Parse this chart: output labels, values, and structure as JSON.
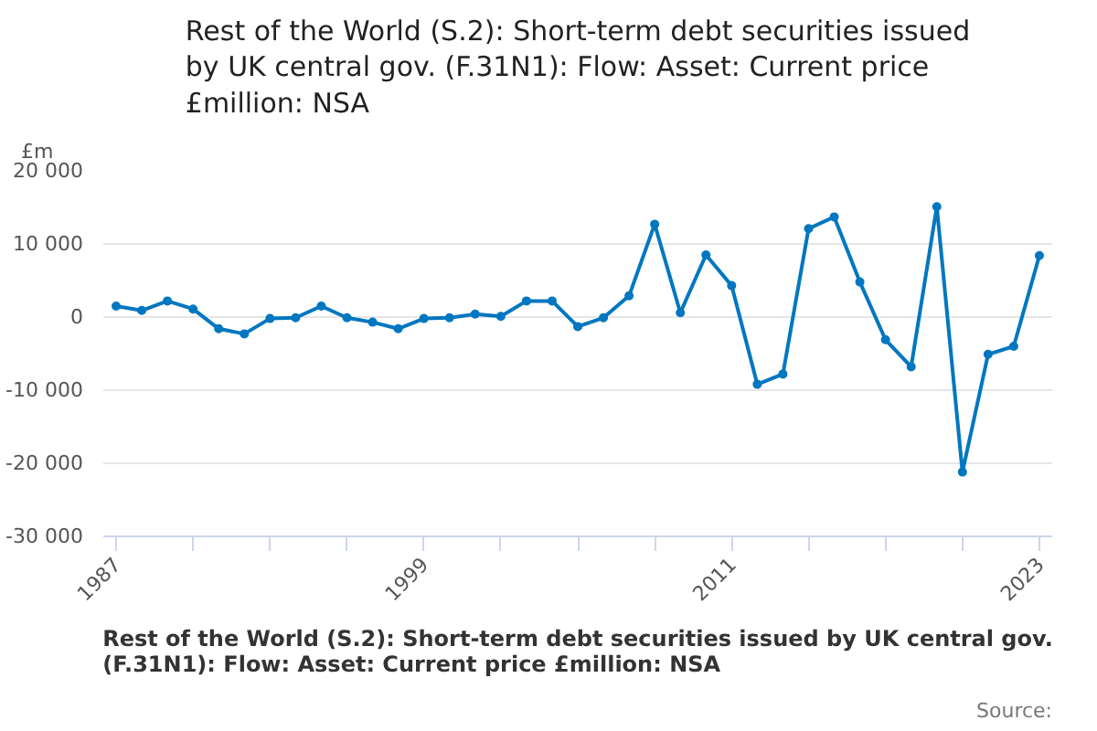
{
  "chart_data": {
    "type": "line",
    "title": "Rest of the World (S.2): Short-term debt securities issued by UK central gov. (F.31N1): Flow: Asset: Current price £million: NSA",
    "ylabel": "£m",
    "x": [
      1987,
      1988,
      1989,
      1990,
      1991,
      1992,
      1993,
      1994,
      1995,
      1996,
      1997,
      1998,
      1999,
      2000,
      2001,
      2002,
      2003,
      2004,
      2005,
      2006,
      2007,
      2008,
      2009,
      2010,
      2011,
      2012,
      2013,
      2014,
      2015,
      2016,
      2017,
      2018,
      2019,
      2020,
      2021,
      2022,
      2023
    ],
    "series": [
      {
        "color": "#0077c0",
        "values": [
          1500,
          900,
          2200,
          1100,
          -1600,
          -2300,
          -200,
          -100,
          1500,
          -100,
          -700,
          -1600,
          -200,
          -100,
          400,
          100,
          2200,
          2200,
          -1300,
          -100,
          2900,
          12700,
          600,
          8500,
          4300,
          -9200,
          -7800,
          12100,
          13700,
          4800,
          -3100,
          -6800,
          15100,
          -21200,
          -5100,
          -4000,
          8400
        ]
      }
    ],
    "xlim": [
      1986.5,
      2023.5
    ],
    "ylim": [
      -30000,
      20000
    ],
    "xticks": [
      1987,
      {
        "value": 1990,
        "label": null
      },
      {
        "value": 1993,
        "label": null
      },
      {
        "value": 1996,
        "label": null
      },
      1999,
      {
        "value": 2002,
        "label": null
      },
      {
        "value": 2005,
        "label": null
      },
      {
        "value": 2008,
        "label": null
      },
      2011,
      {
        "value": 2014,
        "label": null
      },
      {
        "value": 2017,
        "label": null
      },
      {
        "value": 2020,
        "label": null
      },
      2023
    ],
    "yticks": [
      {
        "value": -30000,
        "label": "-30 000"
      },
      {
        "value": -20000,
        "label": "-20 000"
      },
      {
        "value": -10000,
        "label": "-10 000"
      },
      0,
      {
        "value": 10000,
        "label": "10 000"
      },
      {
        "value": 20000,
        "label": "20 000"
      }
    ],
    "grid": "y",
    "marker": "circle",
    "line_style": "solid",
    "annotations": [
      "Rest of the World (S.2): Short-term debt securities issued by UK central gov. (F.31N1): Flow: Asset: Current price £million: NSA",
      "Source:"
    ]
  }
}
